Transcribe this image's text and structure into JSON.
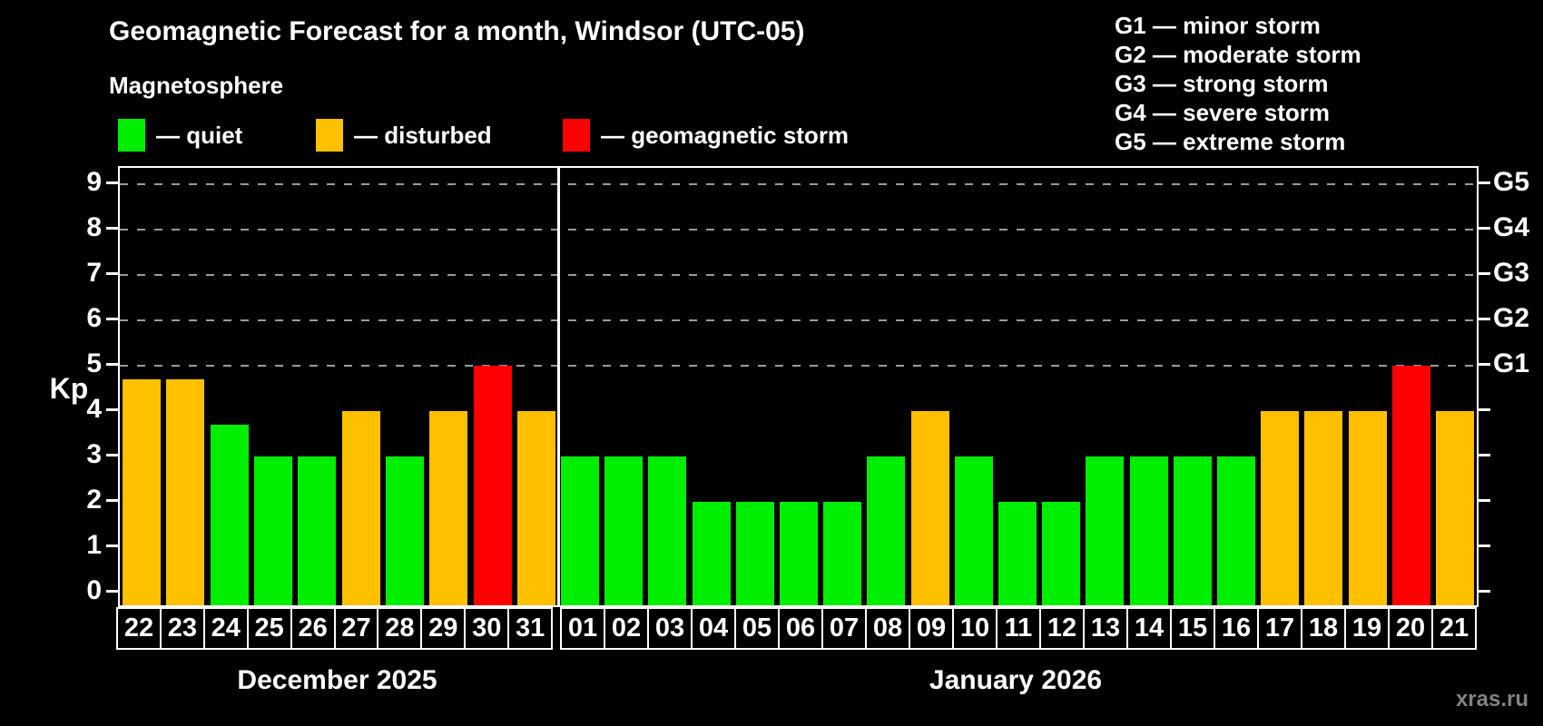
{
  "header": {
    "title": "Geomagnetic Forecast for a month, Windsor (UTC-05)",
    "subtitle": "Magnetosphere"
  },
  "legend": {
    "items": [
      {
        "label": "— quiet",
        "status": "quiet"
      },
      {
        "label": "— disturbed",
        "status": "disturbed"
      },
      {
        "label": "— geomagnetic storm",
        "status": "storm"
      }
    ]
  },
  "g_legend": {
    "items": [
      "G1 — minor storm",
      "G2 — moderate storm",
      "G3 — strong storm",
      "G4 — severe storm",
      "G5 — extreme storm"
    ]
  },
  "axes": {
    "y_label": "Kp",
    "y_ticks": [
      0,
      1,
      2,
      3,
      4,
      5,
      6,
      7,
      8,
      9
    ],
    "right_tick_labels": [
      "G1",
      "G2",
      "G3",
      "G4",
      "G5"
    ]
  },
  "watermark": "xras.ru",
  "chart_data": {
    "type": "bar",
    "title": "Geomagnetic Forecast for a month, Windsor (UTC-05)",
    "xlabel": "",
    "ylabel": "Kp",
    "ylim": [
      0,
      9
    ],
    "y_ticks": [
      0,
      1,
      2,
      3,
      4,
      5,
      6,
      7,
      8,
      9
    ],
    "gridlines_at": [
      5,
      6,
      7,
      8,
      9
    ],
    "grid_style": "dashed horizontal, upper half only",
    "legend_position": "top-left",
    "right_axis_labels": {
      "5": "G1",
      "6": "G2",
      "7": "G3",
      "8": "G4",
      "9": "G5"
    },
    "colors": {
      "quiet": "#00ee00",
      "disturbed": "#ffc000",
      "storm": "#ff0000",
      "grid": "#9a9a9a",
      "axis": "#ffffff",
      "background": "#000000"
    },
    "groups": [
      {
        "label": "December 2025",
        "categories": [
          "22",
          "23",
          "24",
          "25",
          "26",
          "27",
          "28",
          "29",
          "30",
          "31"
        ],
        "values": [
          4.7,
          4.7,
          3.7,
          3,
          3,
          4,
          3,
          4,
          5,
          4
        ],
        "status": [
          "disturbed",
          "disturbed",
          "quiet",
          "quiet",
          "quiet",
          "disturbed",
          "quiet",
          "disturbed",
          "storm",
          "disturbed"
        ]
      },
      {
        "label": "January 2026",
        "categories": [
          "01",
          "02",
          "03",
          "04",
          "05",
          "06",
          "07",
          "08",
          "09",
          "10",
          "11",
          "12",
          "13",
          "14",
          "15",
          "16",
          "17",
          "18",
          "19",
          "20",
          "21"
        ],
        "values": [
          3,
          3,
          3,
          2,
          2,
          2,
          2,
          3,
          4,
          3,
          2,
          2,
          3,
          3,
          3,
          3,
          4,
          4,
          4,
          5,
          4
        ],
        "status": [
          "quiet",
          "quiet",
          "quiet",
          "quiet",
          "quiet",
          "quiet",
          "quiet",
          "quiet",
          "disturbed",
          "quiet",
          "quiet",
          "quiet",
          "quiet",
          "quiet",
          "quiet",
          "quiet",
          "disturbed",
          "disturbed",
          "disturbed",
          "storm",
          "disturbed"
        ]
      }
    ]
  }
}
